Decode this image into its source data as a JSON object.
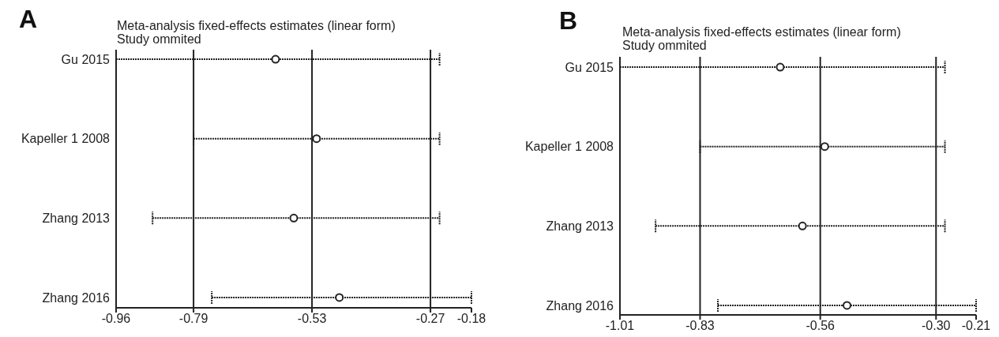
{
  "chart_data": [
    {
      "type": "scatter",
      "orientation": "horizontal",
      "title": "Meta-analysis fixed-effects estimates (linear form)",
      "subtitle": "Study ommited",
      "annotations": [
        "A"
      ],
      "marker": "circle",
      "color": "#222222",
      "categories": [
        "Gu 2015",
        "Kapeller 1  2008",
        "Zhang 2013",
        "Zhang  2016"
      ],
      "values": [
        -0.61,
        -0.52,
        -0.57,
        -0.47
      ],
      "errors": [
        [
          -0.96,
          -0.25
        ],
        [
          -0.79,
          -0.25
        ],
        [
          -0.88,
          -0.25
        ],
        [
          -0.75,
          -0.18
        ]
      ],
      "xlim": [
        -0.96,
        -0.18
      ],
      "xticks": [
        -0.96,
        -0.79,
        -0.53,
        -0.27,
        -0.18
      ],
      "ref_lines": [
        {
          "axis": "x",
          "value": -0.79
        },
        {
          "axis": "x",
          "value": -0.53
        },
        {
          "axis": "x",
          "value": -0.27
        }
      ]
    },
    {
      "type": "scatter",
      "orientation": "horizontal",
      "title": "Meta-analysis fixed-effects estimates (linear form)",
      "subtitle": "Study ommited",
      "annotations": [
        "B"
      ],
      "marker": "circle",
      "color": "#222222",
      "categories": [
        "Gu 2015",
        "Kapeller 1  2008",
        "Zhang 2013",
        "Zhang  2016"
      ],
      "values": [
        -0.65,
        -0.55,
        -0.6,
        -0.5
      ],
      "errors": [
        [
          -1.01,
          -0.28
        ],
        [
          -0.83,
          -0.28
        ],
        [
          -0.93,
          -0.28
        ],
        [
          -0.79,
          -0.21
        ]
      ],
      "xlim": [
        -1.01,
        -0.21
      ],
      "xticks": [
        -1.01,
        -0.83,
        -0.56,
        {
          "value": -0.3,
          "label": "-0.30"
        },
        -0.21
      ],
      "ref_lines": [
        {
          "axis": "x",
          "value": -0.83
        },
        {
          "axis": "x",
          "value": -0.56
        },
        {
          "axis": "x",
          "value": -0.3
        }
      ]
    }
  ]
}
